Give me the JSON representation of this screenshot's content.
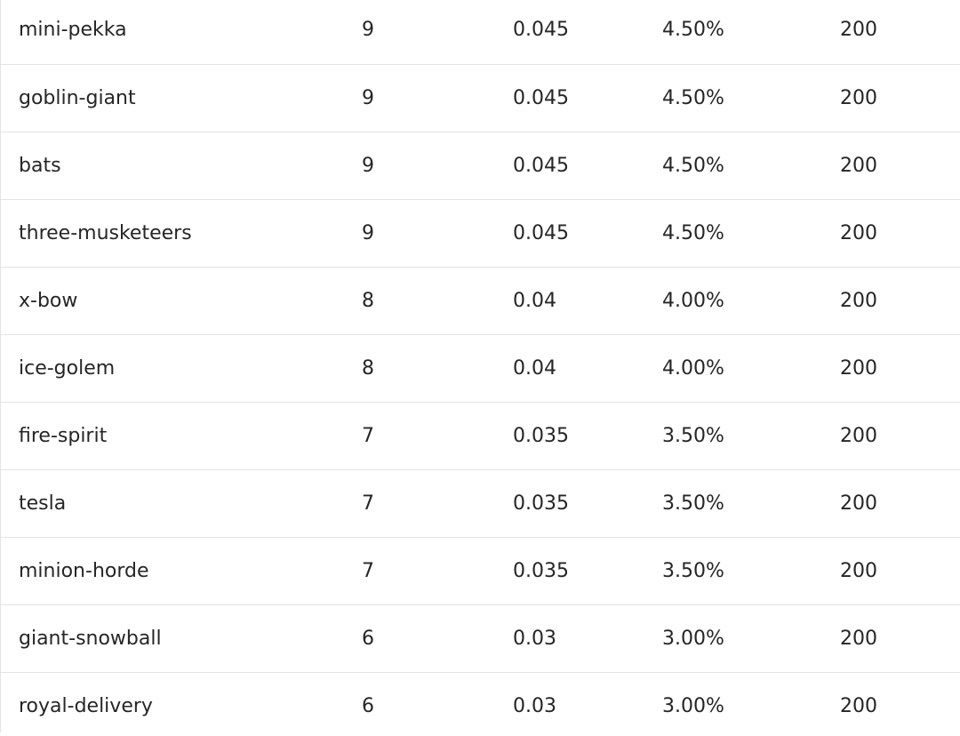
{
  "table": {
    "rows": [
      {
        "name": "mini-pekka",
        "count": "9",
        "ratio": "0.045",
        "percent": "4.50%",
        "total": "200"
      },
      {
        "name": "goblin-giant",
        "count": "9",
        "ratio": "0.045",
        "percent": "4.50%",
        "total": "200"
      },
      {
        "name": "bats",
        "count": "9",
        "ratio": "0.045",
        "percent": "4.50%",
        "total": "200"
      },
      {
        "name": "three-musketeers",
        "count": "9",
        "ratio": "0.045",
        "percent": "4.50%",
        "total": "200"
      },
      {
        "name": "x-bow",
        "count": "8",
        "ratio": "0.04",
        "percent": "4.00%",
        "total": "200"
      },
      {
        "name": "ice-golem",
        "count": "8",
        "ratio": "0.04",
        "percent": "4.00%",
        "total": "200"
      },
      {
        "name": "fire-spirit",
        "count": "7",
        "ratio": "0.035",
        "percent": "3.50%",
        "total": "200"
      },
      {
        "name": "tesla",
        "count": "7",
        "ratio": "0.035",
        "percent": "3.50%",
        "total": "200"
      },
      {
        "name": "minion-horde",
        "count": "7",
        "ratio": "0.035",
        "percent": "3.50%",
        "total": "200"
      },
      {
        "name": "giant-snowball",
        "count": "6",
        "ratio": "0.03",
        "percent": "3.00%",
        "total": "200"
      },
      {
        "name": "royal-delivery",
        "count": "6",
        "ratio": "0.03",
        "percent": "3.00%",
        "total": "200"
      }
    ]
  }
}
